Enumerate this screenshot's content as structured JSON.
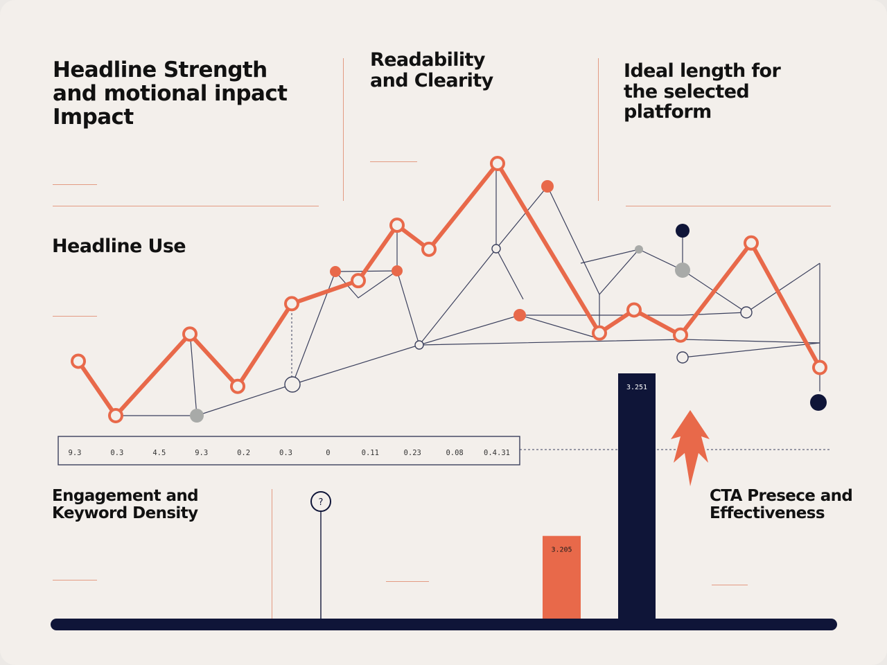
{
  "colors": {
    "background": "#f3efeb",
    "accent": "#e8694a",
    "navy": "#0f1538",
    "muted": "#a8aaa8",
    "text": "#111111"
  },
  "sections": {
    "headline_strength": {
      "title_line1": "Headline Strength",
      "title_line2": "and motional inpact",
      "title_line3": "Impact"
    },
    "readability": {
      "title_line1": "Readability",
      "title_line2": "and Clearity"
    },
    "ideal_length": {
      "title_line1": "Ideal length for",
      "title_line2": "the selected",
      "title_line3": "platform"
    },
    "headline_use": {
      "title": "Headline Use"
    },
    "engagement": {
      "title_line1": "Engagement and",
      "title_line2": "Keyword Density"
    },
    "cta": {
      "title_line1": "CTA Presece and",
      "title_line2": "Effectiveness"
    }
  },
  "chart_data": {
    "type": "line",
    "tick_labels": [
      "9.3",
      "0.3",
      "4.5",
      "9.3",
      "0.2",
      "0.3",
      "0",
      "0.11",
      "0.23",
      "0.08",
      "0.4.31"
    ],
    "series": [
      {
        "color": "#e8694a",
        "x": [
          0,
          1,
          2,
          3,
          4,
          5,
          6,
          7,
          8,
          9,
          10,
          11,
          12,
          13,
          14
        ],
        "y": [
          0.52,
          0.0,
          0.78,
          0.28,
          1.07,
          1.29,
          1.82,
          1.59,
          2.41,
          0.79,
          1.01,
          0.77,
          1.65,
          0.69,
          0.46
        ]
      }
    ],
    "bars": [
      {
        "label": "3.205",
        "value": 0.35,
        "color": "#e8694a"
      },
      {
        "label": "3.251",
        "value": 1.0,
        "color": "#0f1538"
      }
    ],
    "annotations": [
      "?"
    ],
    "grid": false
  }
}
